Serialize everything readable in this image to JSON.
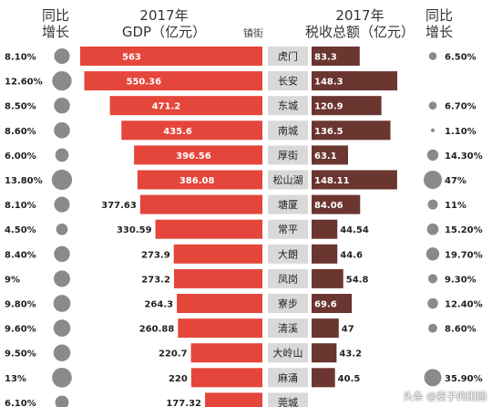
{
  "headers": {
    "left_growth": [
      "同比",
      "增长"
    ],
    "gdp": [
      "2017年",
      "GDP（亿元）"
    ],
    "town": "镇街",
    "tax": [
      "2017年",
      "税收总额（亿元）"
    ],
    "right_growth": [
      "同比",
      "增长"
    ]
  },
  "colors": {
    "gdp_bar": "#e4463c",
    "tax_bar": "#6b3530",
    "town_box": "#d9d9d9",
    "circle": "#8a8a8a"
  },
  "watermark": "头条 @麦子的田园",
  "chart_data": {
    "type": "bar",
    "categories": [
      "虎门",
      "长安",
      "东城",
      "南城",
      "厚街",
      "松山湖",
      "塘厦",
      "常平",
      "大朗",
      "凤岗",
      "寮步",
      "清溪",
      "大岭山",
      "麻涌",
      "莞城"
    ],
    "series": [
      {
        "name": "2017年GDP（亿元）",
        "values": [
          563,
          550.36,
          471.2,
          435.6,
          396.56,
          386.08,
          377.63,
          330.59,
          273.9,
          273.2,
          264.3,
          260.88,
          220.7,
          220,
          177.32
        ],
        "labels": [
          "563",
          "550.36",
          "471.2",
          "435.6",
          "396.56",
          "386.08",
          "377.63",
          "330.59",
          "273.9",
          "273.2",
          "264.3",
          "260.88",
          "220.7",
          "220",
          "177.32"
        ]
      },
      {
        "name": "2017年税收总额（亿元）",
        "values": [
          83.3,
          148.3,
          120.9,
          136.5,
          63.1,
          148.11,
          84.06,
          44.54,
          44.6,
          54.8,
          69.6,
          47,
          43.2,
          40.5,
          null
        ],
        "labels": [
          "83.3",
          "148.3",
          "120.9",
          "136.5",
          "63.1",
          "148.11",
          "84.06",
          "44.54",
          "44.6",
          "54.8",
          "69.6",
          "47",
          "43.2",
          "40.5",
          ""
        ]
      }
    ],
    "gdp_growth": {
      "labels": [
        "8.10%",
        "12.60%",
        "8.50%",
        "8.60%",
        "6.00%",
        "13.80%",
        "8.10%",
        "4.50%",
        "8.40%",
        "9%",
        "9.80%",
        "9.60%",
        "9.50%",
        "13%",
        "6.10%"
      ],
      "values": [
        8.1,
        12.6,
        8.5,
        8.6,
        6.0,
        13.8,
        8.1,
        4.5,
        8.4,
        9,
        9.8,
        9.6,
        9.5,
        13,
        6.1
      ]
    },
    "tax_growth": {
      "labels": [
        "6.50%",
        "",
        "6.70%",
        "1.10%",
        "14.30%",
        "47%",
        "11%",
        "15.20%",
        "19.70%",
        "9.30%",
        "12.40%",
        "8.60%",
        "",
        "35.90%",
        ""
      ],
      "values": [
        6.5,
        null,
        6.7,
        1.1,
        14.3,
        47,
        11,
        15.2,
        19.7,
        9.3,
        12.4,
        8.6,
        null,
        35.9,
        null
      ]
    },
    "gdp_range": [
      0,
      563
    ],
    "tax_range": [
      0,
      148.3
    ]
  }
}
